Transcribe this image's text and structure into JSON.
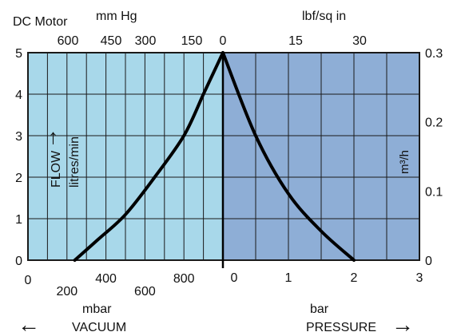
{
  "chart_data": {
    "type": "line",
    "title": "DC Motor",
    "series": [
      {
        "values_vacuum_mbar": [
          [
            240,
            0
          ],
          [
            360,
            0.5
          ],
          [
            500,
            1.1
          ],
          [
            650,
            2.0
          ],
          [
            800,
            3.0
          ],
          [
            900,
            4.0
          ],
          [
            950,
            4.5
          ],
          [
            1000,
            5.0
          ]
        ],
        "values_pressure_bar": [
          [
            0,
            5.0
          ],
          [
            0.5,
            3.0
          ],
          [
            1.0,
            1.6
          ],
          [
            1.5,
            0.7
          ],
          [
            2.0,
            0
          ]
        ]
      }
    ],
    "axes": {
      "left": {
        "label": "FLOW",
        "unit": "litres/min",
        "range": [
          0,
          5
        ],
        "ticks": [
          "0",
          "1",
          "2",
          "3",
          "4",
          "5"
        ]
      },
      "right": {
        "label": "m³/h",
        "range": [
          0,
          0.3
        ],
        "ticks": [
          "0",
          "0.1",
          "0.2",
          "0.3"
        ]
      },
      "bottom_vacuum": {
        "label": "mbar",
        "range": [
          0,
          1000
        ],
        "ticks": [
          "0",
          "200",
          "400",
          "600",
          "800"
        ],
        "direction": "VACUUM"
      },
      "bottom_pressure": {
        "label": "bar",
        "range": [
          0,
          3
        ],
        "ticks": [
          "0",
          "1",
          "2",
          "3"
        ],
        "direction": "PRESSURE"
      },
      "top_vacuum": {
        "label": "mm Hg",
        "ticks": [
          "600",
          "450",
          "300",
          "150",
          "0"
        ]
      },
      "top_pressure": {
        "label": "lbf/sq in",
        "ticks": [
          "15",
          "30"
        ]
      }
    },
    "grid": true,
    "colors": {
      "vacuum_fill": "#a8d8ea",
      "pressure_fill": "#8eaed6",
      "grid": "#1a1a1a",
      "curve": "#000000"
    },
    "arrows": {
      "left": "←",
      "right": "→",
      "up": "↑"
    }
  }
}
